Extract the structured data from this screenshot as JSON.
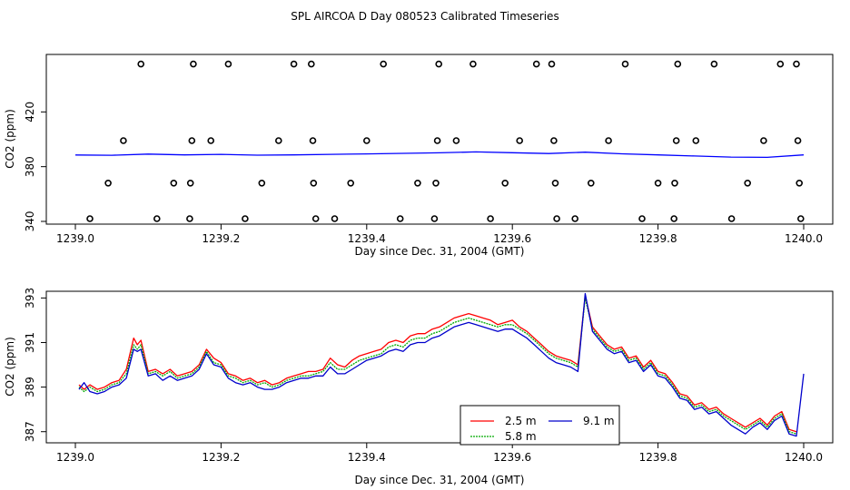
{
  "title": "SPL AIRCOA D  Day 080523  Calibrated Timeseries",
  "chart_data": [
    {
      "type": "scatter",
      "xlabel": "Day since Dec. 31, 2004 (GMT)",
      "ylabel": "CO2 (ppm)",
      "xlim": [
        1239.0,
        1240.0
      ],
      "ylim": [
        338,
        462
      ],
      "xticks": [
        1239.0,
        1239.2,
        1239.4,
        1239.6,
        1239.8,
        1240.0
      ],
      "xtick_labels": [
        "1239.0",
        "1239.2",
        "1239.4",
        "1239.6",
        "1239.8",
        "1240.0"
      ],
      "yticks": [
        340,
        380,
        420
      ],
      "ytick_labels": [
        "340",
        "380",
        "420"
      ],
      "line_color": "#0000ff",
      "line": {
        "x": [
          1239.0,
          1239.05,
          1239.1,
          1239.15,
          1239.2,
          1239.25,
          1239.3,
          1239.35,
          1239.4,
          1239.45,
          1239.5,
          1239.55,
          1239.6,
          1239.65,
          1239.7,
          1239.75,
          1239.8,
          1239.85,
          1239.9,
          1239.95,
          1240.0
        ],
        "y": [
          388.5,
          388.3,
          389.2,
          388.6,
          389.0,
          388.4,
          388.6,
          389.0,
          389.3,
          389.7,
          390.1,
          390.8,
          390.2,
          389.6,
          390.6,
          389.4,
          388.6,
          387.8,
          387.0,
          386.8,
          388.6
        ]
      },
      "markers": {
        "x": [
          1239.02,
          1239.045,
          1239.066,
          1239.09,
          1239.112,
          1239.135,
          1239.157,
          1239.158,
          1239.16,
          1239.162,
          1239.186,
          1239.21,
          1239.233,
          1239.256,
          1239.279,
          1239.3,
          1239.324,
          1239.326,
          1239.327,
          1239.33,
          1239.356,
          1239.378,
          1239.4,
          1239.423,
          1239.446,
          1239.47,
          1239.493,
          1239.495,
          1239.497,
          1239.499,
          1239.523,
          1239.546,
          1239.57,
          1239.59,
          1239.61,
          1239.633,
          1239.654,
          1239.657,
          1239.659,
          1239.661,
          1239.686,
          1239.708,
          1239.732,
          1239.755,
          1239.778,
          1239.8,
          1239.822,
          1239.823,
          1239.825,
          1239.827,
          1239.852,
          1239.877,
          1239.901,
          1239.923,
          1239.945,
          1239.968,
          1239.99,
          1239.992,
          1239.994,
          1239.996
        ],
        "y": [
          342,
          368,
          399,
          455,
          342,
          368,
          342,
          368,
          399,
          455,
          399,
          455,
          342,
          368,
          399,
          455,
          455,
          399,
          368,
          342,
          342,
          368,
          399,
          455,
          342,
          368,
          342,
          368,
          399,
          455,
          399,
          455,
          342,
          368,
          399,
          455,
          455,
          399,
          368,
          342,
          342,
          368,
          399,
          455,
          342,
          368,
          342,
          368,
          399,
          455,
          399,
          455,
          342,
          368,
          399,
          455,
          455,
          399,
          368,
          342
        ]
      }
    },
    {
      "type": "line",
      "xlabel": "Day since Dec. 31, 2004 (GMT)",
      "ylabel": "CO2 (ppm)",
      "xlim": [
        1239.0,
        1240.0
      ],
      "ylim": [
        386.5,
        393.3
      ],
      "xticks": [
        1239.0,
        1239.2,
        1239.4,
        1239.6,
        1239.8,
        1240.0
      ],
      "xtick_labels": [
        "1239.0",
        "1239.2",
        "1239.4",
        "1239.6",
        "1239.8",
        "1240.0"
      ],
      "yticks": [
        387,
        389,
        391,
        393
      ],
      "ytick_labels": [
        "387",
        "389",
        "391",
        "393"
      ],
      "legend_position": "bottom-center",
      "series": [
        {
          "name": "2.5 m",
          "color": "#ff0000",
          "x": [
            1239.005,
            1239.012,
            1239.02,
            1239.03,
            1239.04,
            1239.05,
            1239.06,
            1239.07,
            1239.08,
            1239.085,
            1239.09,
            1239.1,
            1239.11,
            1239.12,
            1239.13,
            1239.14,
            1239.15,
            1239.16,
            1239.17,
            1239.18,
            1239.19,
            1239.2,
            1239.21,
            1239.22,
            1239.23,
            1239.24,
            1239.25,
            1239.26,
            1239.27,
            1239.28,
            1239.29,
            1239.3,
            1239.31,
            1239.32,
            1239.33,
            1239.34,
            1239.35,
            1239.36,
            1239.37,
            1239.38,
            1239.39,
            1239.4,
            1239.41,
            1239.42,
            1239.43,
            1239.44,
            1239.45,
            1239.46,
            1239.47,
            1239.48,
            1239.49,
            1239.5,
            1239.51,
            1239.52,
            1239.53,
            1239.54,
            1239.55,
            1239.56,
            1239.57,
            1239.58,
            1239.59,
            1239.6,
            1239.61,
            1239.62,
            1239.63,
            1239.64,
            1239.65,
            1239.66,
            1239.67,
            1239.68,
            1239.69,
            1239.7,
            1239.71,
            1239.72,
            1239.73,
            1239.74,
            1239.75,
            1239.76,
            1239.77,
            1239.78,
            1239.79,
            1239.8,
            1239.81,
            1239.82,
            1239.83,
            1239.84,
            1239.85,
            1239.86,
            1239.87,
            1239.88,
            1239.89,
            1239.9,
            1239.91,
            1239.92,
            1239.93,
            1239.94,
            1239.95,
            1239.96,
            1239.97,
            1239.98,
            1239.99
          ],
          "y": [
            389.1,
            388.9,
            389.1,
            388.9,
            389.0,
            389.2,
            389.3,
            389.8,
            391.2,
            390.9,
            391.1,
            389.7,
            389.8,
            389.6,
            389.8,
            389.5,
            389.6,
            389.7,
            390.0,
            390.7,
            390.3,
            390.1,
            389.6,
            389.5,
            389.3,
            389.4,
            389.2,
            389.3,
            389.1,
            389.2,
            389.4,
            389.5,
            389.6,
            389.7,
            389.7,
            389.8,
            390.3,
            390.0,
            389.9,
            390.2,
            390.4,
            390.5,
            390.6,
            390.7,
            391.0,
            391.1,
            391.0,
            391.3,
            391.4,
            391.4,
            391.6,
            391.7,
            391.9,
            392.1,
            392.2,
            392.3,
            392.2,
            392.1,
            392.0,
            391.8,
            391.9,
            392.0,
            391.7,
            391.5,
            391.2,
            390.9,
            390.6,
            390.4,
            390.3,
            390.2,
            390.0,
            393.1,
            391.7,
            391.3,
            390.9,
            390.7,
            390.8,
            390.3,
            390.4,
            389.9,
            390.2,
            389.7,
            389.6,
            389.2,
            388.7,
            388.6,
            388.2,
            388.3,
            388.0,
            388.1,
            387.8,
            387.6,
            387.4,
            387.2,
            387.4,
            387.6,
            387.3,
            387.7,
            387.9,
            387.1,
            387.0
          ]
        },
        {
          "name": "5.8 m",
          "color": "#00aa00",
          "x": [
            1239.005,
            1239.012,
            1239.02,
            1239.03,
            1239.04,
            1239.05,
            1239.06,
            1239.07,
            1239.08,
            1239.085,
            1239.09,
            1239.1,
            1239.11,
            1239.12,
            1239.13,
            1239.14,
            1239.15,
            1239.16,
            1239.17,
            1239.18,
            1239.19,
            1239.2,
            1239.21,
            1239.22,
            1239.23,
            1239.24,
            1239.25,
            1239.26,
            1239.27,
            1239.28,
            1239.29,
            1239.3,
            1239.31,
            1239.32,
            1239.33,
            1239.34,
            1239.35,
            1239.36,
            1239.37,
            1239.38,
            1239.39,
            1239.4,
            1239.41,
            1239.42,
            1239.43,
            1239.44,
            1239.45,
            1239.46,
            1239.47,
            1239.48,
            1239.49,
            1239.5,
            1239.51,
            1239.52,
            1239.53,
            1239.54,
            1239.55,
            1239.56,
            1239.57,
            1239.58,
            1239.59,
            1239.6,
            1239.61,
            1239.62,
            1239.63,
            1239.64,
            1239.65,
            1239.66,
            1239.67,
            1239.68,
            1239.69,
            1239.7,
            1239.71,
            1239.72,
            1239.73,
            1239.74,
            1239.75,
            1239.76,
            1239.77,
            1239.78,
            1239.79,
            1239.8,
            1239.81,
            1239.82,
            1239.83,
            1239.84,
            1239.85,
            1239.86,
            1239.87,
            1239.88,
            1239.89,
            1239.9,
            1239.91,
            1239.92,
            1239.93,
            1239.94,
            1239.95,
            1239.96,
            1239.97,
            1239.98,
            1239.99
          ],
          "y": [
            389.0,
            388.8,
            389.0,
            388.8,
            388.9,
            389.1,
            389.2,
            389.6,
            390.9,
            390.7,
            390.9,
            389.6,
            389.7,
            389.5,
            389.7,
            389.4,
            389.5,
            389.6,
            389.9,
            390.6,
            390.1,
            390.0,
            389.5,
            389.4,
            389.2,
            389.3,
            389.1,
            389.2,
            389.0,
            389.1,
            389.3,
            389.4,
            389.5,
            389.5,
            389.6,
            389.7,
            390.1,
            389.8,
            389.8,
            390.0,
            390.2,
            390.3,
            390.4,
            390.5,
            390.8,
            390.9,
            390.8,
            391.1,
            391.2,
            391.2,
            391.4,
            391.5,
            391.7,
            391.9,
            392.0,
            392.1,
            392.0,
            391.9,
            391.8,
            391.7,
            391.8,
            391.8,
            391.6,
            391.4,
            391.1,
            390.8,
            390.5,
            390.3,
            390.2,
            390.1,
            389.9,
            393.0,
            391.6,
            391.2,
            390.8,
            390.6,
            390.7,
            390.2,
            390.3,
            389.8,
            390.1,
            389.6,
            389.5,
            389.1,
            388.6,
            388.5,
            388.1,
            388.2,
            387.9,
            388.0,
            387.7,
            387.5,
            387.3,
            387.1,
            387.3,
            387.5,
            387.2,
            387.6,
            387.8,
            387.0,
            386.9
          ]
        },
        {
          "name": "9.1 m",
          "color": "#0000cc",
          "x": [
            1239.005,
            1239.012,
            1239.02,
            1239.03,
            1239.04,
            1239.05,
            1239.06,
            1239.07,
            1239.08,
            1239.085,
            1239.09,
            1239.1,
            1239.11,
            1239.12,
            1239.13,
            1239.14,
            1239.15,
            1239.16,
            1239.17,
            1239.18,
            1239.19,
            1239.2,
            1239.21,
            1239.22,
            1239.23,
            1239.24,
            1239.25,
            1239.26,
            1239.27,
            1239.28,
            1239.29,
            1239.3,
            1239.31,
            1239.32,
            1239.33,
            1239.34,
            1239.35,
            1239.36,
            1239.37,
            1239.38,
            1239.39,
            1239.4,
            1239.41,
            1239.42,
            1239.43,
            1239.44,
            1239.45,
            1239.46,
            1239.47,
            1239.48,
            1239.49,
            1239.5,
            1239.51,
            1239.52,
            1239.53,
            1239.54,
            1239.55,
            1239.56,
            1239.57,
            1239.58,
            1239.59,
            1239.6,
            1239.61,
            1239.62,
            1239.63,
            1239.64,
            1239.65,
            1239.66,
            1239.67,
            1239.68,
            1239.69,
            1239.7,
            1239.71,
            1239.72,
            1239.73,
            1239.74,
            1239.75,
            1239.76,
            1239.77,
            1239.78,
            1239.79,
            1239.8,
            1239.81,
            1239.82,
            1239.83,
            1239.84,
            1239.85,
            1239.86,
            1239.87,
            1239.88,
            1239.89,
            1239.9,
            1239.91,
            1239.92,
            1239.93,
            1239.94,
            1239.95,
            1239.96,
            1239.97,
            1239.98,
            1239.99,
            1240.0
          ],
          "y": [
            388.9,
            389.2,
            388.8,
            388.7,
            388.8,
            389.0,
            389.1,
            389.4,
            390.7,
            390.6,
            390.7,
            389.5,
            389.6,
            389.3,
            389.5,
            389.3,
            389.4,
            389.5,
            389.8,
            390.5,
            390.0,
            389.9,
            389.4,
            389.2,
            389.1,
            389.2,
            389.0,
            388.9,
            388.9,
            389.0,
            389.2,
            389.3,
            389.4,
            389.4,
            389.5,
            389.5,
            389.9,
            389.6,
            389.6,
            389.8,
            390.0,
            390.2,
            390.3,
            390.4,
            390.6,
            390.7,
            390.6,
            390.9,
            391.0,
            391.0,
            391.2,
            391.3,
            391.5,
            391.7,
            391.8,
            391.9,
            391.8,
            391.7,
            391.6,
            391.5,
            391.6,
            391.6,
            391.4,
            391.2,
            390.9,
            390.6,
            390.3,
            390.1,
            390.0,
            389.9,
            389.7,
            393.2,
            391.5,
            391.1,
            390.7,
            390.5,
            390.6,
            390.1,
            390.2,
            389.7,
            390.0,
            389.5,
            389.4,
            389.0,
            388.5,
            388.4,
            388.0,
            388.1,
            387.8,
            387.9,
            387.6,
            387.3,
            387.1,
            386.9,
            387.2,
            387.4,
            387.1,
            387.5,
            387.7,
            386.9,
            386.8,
            389.6
          ]
        }
      ]
    }
  ]
}
